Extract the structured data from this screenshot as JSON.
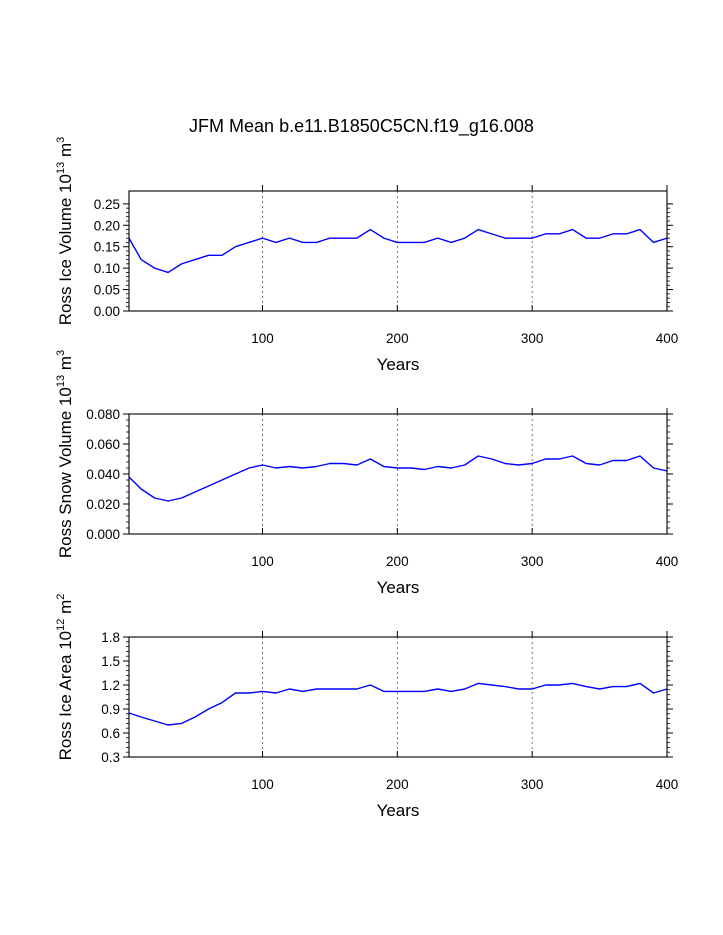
{
  "title": "JFM Mean b.e11.B1850C5CN.f19_g16.008",
  "chart_data": [
    {
      "type": "line",
      "ylabel_prefix": "Ross Ice Volume 10",
      "ylabel_exp": "13",
      "ylabel_unit": " m",
      "ylabel_unit_exp": "3",
      "xlabel": "Years",
      "xlim": [
        1,
        400
      ],
      "ylim": [
        0,
        0.28
      ],
      "xticks": [
        100,
        200,
        300,
        400
      ],
      "yticks": [
        0,
        0.05,
        0.1,
        0.15,
        0.2,
        0.25
      ],
      "ytick_labels": [
        "0.00",
        "0.05",
        "0.10",
        "0.15",
        "0.20",
        "0.25"
      ],
      "grid": "dashed vertical at 100, 200, 300",
      "series": [
        {
          "name": "Ross Ice Volume",
          "color": "#0000ff",
          "x": [
            1,
            10,
            20,
            30,
            40,
            50,
            60,
            70,
            80,
            90,
            100,
            110,
            120,
            130,
            140,
            150,
            160,
            170,
            180,
            190,
            200,
            210,
            220,
            230,
            240,
            250,
            260,
            270,
            280,
            290,
            300,
            310,
            320,
            330,
            340,
            350,
            360,
            370,
            380,
            390,
            400
          ],
          "values": [
            0.17,
            0.12,
            0.1,
            0.09,
            0.11,
            0.12,
            0.13,
            0.13,
            0.15,
            0.16,
            0.17,
            0.16,
            0.17,
            0.16,
            0.16,
            0.17,
            0.17,
            0.17,
            0.19,
            0.17,
            0.16,
            0.16,
            0.16,
            0.17,
            0.16,
            0.17,
            0.19,
            0.18,
            0.17,
            0.17,
            0.17,
            0.18,
            0.18,
            0.19,
            0.17,
            0.17,
            0.18,
            0.18,
            0.19,
            0.16,
            0.17
          ]
        }
      ]
    },
    {
      "type": "line",
      "ylabel_prefix": "Ross Snow Volume 10",
      "ylabel_exp": "13",
      "ylabel_unit": " m",
      "ylabel_unit_exp": "3",
      "xlabel": "Years",
      "xlim": [
        1,
        400
      ],
      "ylim": [
        0,
        0.08
      ],
      "xticks": [
        100,
        200,
        300,
        400
      ],
      "yticks": [
        0,
        0.02,
        0.04,
        0.06,
        0.08
      ],
      "ytick_labels": [
        "0.000",
        "0.020",
        "0.040",
        "0.060",
        "0.080"
      ],
      "grid": "dashed vertical at 100, 200, 300",
      "series": [
        {
          "name": "Ross Snow Volume",
          "color": "#0000ff",
          "x": [
            1,
            10,
            20,
            30,
            40,
            50,
            60,
            70,
            80,
            90,
            100,
            110,
            120,
            130,
            140,
            150,
            160,
            170,
            180,
            190,
            200,
            210,
            220,
            230,
            240,
            250,
            260,
            270,
            280,
            290,
            300,
            310,
            320,
            330,
            340,
            350,
            360,
            370,
            380,
            390,
            400
          ],
          "values": [
            0.038,
            0.03,
            0.024,
            0.022,
            0.024,
            0.028,
            0.032,
            0.036,
            0.04,
            0.044,
            0.046,
            0.044,
            0.045,
            0.044,
            0.045,
            0.047,
            0.047,
            0.046,
            0.05,
            0.045,
            0.044,
            0.044,
            0.043,
            0.045,
            0.044,
            0.046,
            0.052,
            0.05,
            0.047,
            0.046,
            0.047,
            0.05,
            0.05,
            0.052,
            0.047,
            0.046,
            0.049,
            0.049,
            0.052,
            0.044,
            0.042
          ]
        }
      ]
    },
    {
      "type": "line",
      "ylabel_prefix": "Ross Ice Area 10",
      "ylabel_exp": "12",
      "ylabel_unit": " m",
      "ylabel_unit_exp": "2",
      "xlabel": "Years",
      "xlim": [
        1,
        400
      ],
      "ylim": [
        0.3,
        1.8
      ],
      "xticks": [
        100,
        200,
        300,
        400
      ],
      "yticks": [
        0.3,
        0.6,
        0.9,
        1.2,
        1.5,
        1.8
      ],
      "ytick_labels": [
        "0.3",
        "0.6",
        "0.9",
        "1.2",
        "1.5",
        "1.8"
      ],
      "grid": "dashed vertical at 100, 200, 300",
      "series": [
        {
          "name": "Ross Ice Area",
          "color": "#0000ff",
          "x": [
            1,
            10,
            20,
            30,
            40,
            50,
            60,
            70,
            80,
            90,
            100,
            110,
            120,
            130,
            140,
            150,
            160,
            170,
            180,
            190,
            200,
            210,
            220,
            230,
            240,
            250,
            260,
            270,
            280,
            290,
            300,
            310,
            320,
            330,
            340,
            350,
            360,
            370,
            380,
            390,
            400
          ],
          "values": [
            0.85,
            0.8,
            0.75,
            0.7,
            0.72,
            0.8,
            0.9,
            0.98,
            1.1,
            1.1,
            1.12,
            1.1,
            1.15,
            1.12,
            1.15,
            1.15,
            1.15,
            1.15,
            1.2,
            1.12,
            1.12,
            1.12,
            1.12,
            1.15,
            1.12,
            1.15,
            1.22,
            1.2,
            1.18,
            1.15,
            1.15,
            1.2,
            1.2,
            1.22,
            1.18,
            1.15,
            1.18,
            1.18,
            1.22,
            1.1,
            1.15
          ]
        }
      ]
    }
  ]
}
